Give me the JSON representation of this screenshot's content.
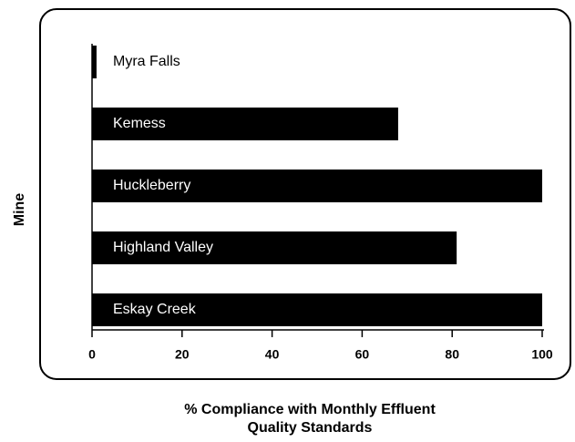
{
  "chart_data": {
    "type": "bar",
    "orientation": "horizontal",
    "categories": [
      "Myra Falls",
      "Kemess",
      "Huckleberry",
      "Highland Valley",
      "Eskay Creek"
    ],
    "values": [
      1,
      68,
      100,
      81,
      100
    ],
    "color": "#000000",
    "xlabel": [
      "% Compliance with Monthly Effluent",
      "Quality Standards"
    ],
    "ylabel": "Mine",
    "xlim": [
      0,
      100
    ],
    "xticks": [
      0,
      20,
      40,
      60,
      80,
      100
    ]
  }
}
